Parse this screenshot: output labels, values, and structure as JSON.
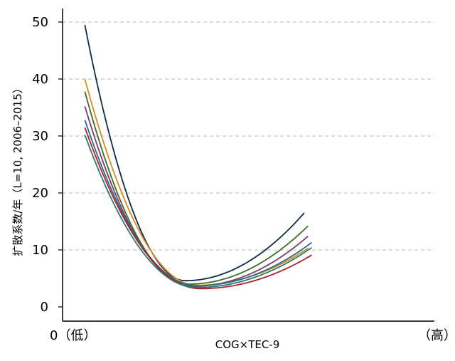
{
  "chart_data": {
    "type": "line",
    "title": "",
    "xlabel": "COG×TEC-9",
    "ylabel": "扩散系数/年（L=10, 2006–2015）",
    "x_tick_labels": {
      "low": "0（低）",
      "high": "（高）"
    },
    "y_ticks": [
      0,
      10,
      20,
      30,
      40,
      50
    ],
    "ylim": [
      -2,
      52
    ],
    "xlim": [
      0,
      1
    ],
    "grid": {
      "horizontal": true,
      "vertical": false,
      "style": "dashed"
    },
    "legend": "none",
    "x_range_of_curves": [
      0.06,
      0.67
    ],
    "series": [
      {
        "color": "#0d2a46",
        "values": [
          [
            0.06,
            49.5
          ],
          [
            0.33,
            4.6
          ],
          [
            0.65,
            16.5
          ]
        ]
      },
      {
        "color": "#d98a1a",
        "values": [
          [
            0.06,
            40.0
          ],
          [
            0.36,
            3.8
          ],
          [
            0.66,
            10.3
          ]
        ]
      },
      {
        "color": "#3c6b25",
        "values": [
          [
            0.06,
            37.8
          ],
          [
            0.34,
            4.0
          ],
          [
            0.66,
            14.2
          ]
        ]
      },
      {
        "color": "#7b3a6b",
        "values": [
          [
            0.06,
            35.2
          ],
          [
            0.35,
            3.6
          ],
          [
            0.66,
            12.4
          ]
        ]
      },
      {
        "color": "#2a6a8a",
        "values": [
          [
            0.06,
            32.8
          ],
          [
            0.36,
            3.7
          ],
          [
            0.67,
            11.3
          ]
        ]
      },
      {
        "color": "#b21f2d",
        "values": [
          [
            0.06,
            31.5
          ],
          [
            0.37,
            3.2
          ],
          [
            0.67,
            9.1
          ]
        ]
      },
      {
        "color": "#2a7a66",
        "values": [
          [
            0.06,
            30.2
          ],
          [
            0.36,
            3.4
          ],
          [
            0.67,
            10.4
          ]
        ]
      }
    ]
  }
}
